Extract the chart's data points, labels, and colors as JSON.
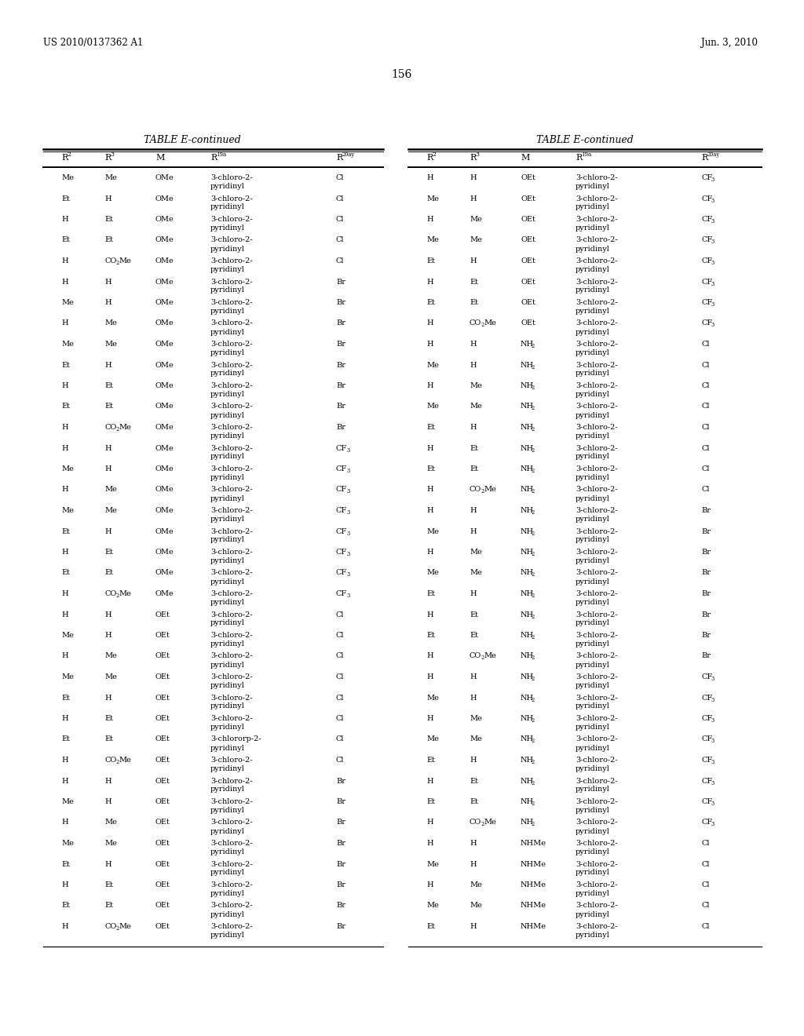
{
  "page_number": "156",
  "patent_left": "US 2010/0137362 A1",
  "patent_right": "Jun. 3, 2010",
  "table_title": "TABLE E-continued",
  "left_table": {
    "rows": [
      [
        "Me",
        "Me",
        "OMe",
        "3-chloro-2-\npyridinyl",
        "Cl"
      ],
      [
        "Et",
        "H",
        "OMe",
        "3-chloro-2-\npyridinyl",
        "Cl"
      ],
      [
        "H",
        "Et",
        "OMe",
        "3-chloro-2-\npyridinyl",
        "Cl"
      ],
      [
        "Et",
        "Et",
        "OMe",
        "3-chloro-2-\npyridinyl",
        "Cl"
      ],
      [
        "H",
        "CO2Me",
        "OMe",
        "3-chloro-2-\npyridinyl",
        "Cl"
      ],
      [
        "H",
        "H",
        "OMe",
        "3-chloro-2-\npyridinyl",
        "Br"
      ],
      [
        "Me",
        "H",
        "OMe",
        "3-chloro-2-\npyridinyl",
        "Br"
      ],
      [
        "H",
        "Me",
        "OMe",
        "3-chloro-2-\npyridinyl",
        "Br"
      ],
      [
        "Me",
        "Me",
        "OMe",
        "3-chloro-2-\npyridinyl",
        "Br"
      ],
      [
        "Et",
        "H",
        "OMe",
        "3-chloro-2-\npyridinyl",
        "Br"
      ],
      [
        "H",
        "Et",
        "OMe",
        "3-chloro-2-\npyridinyl",
        "Br"
      ],
      [
        "Et",
        "Et",
        "OMe",
        "3-chloro-2-\npyridinyl",
        "Br"
      ],
      [
        "H",
        "CO2Me",
        "OMe",
        "3-chloro-2-\npyridinyl",
        "Br"
      ],
      [
        "H",
        "H",
        "OMe",
        "3-chloro-2-\npyridinyl",
        "CF3"
      ],
      [
        "Me",
        "H",
        "OMe",
        "3-chloro-2-\npyridinyl",
        "CF3"
      ],
      [
        "H",
        "Me",
        "OMe",
        "3-chloro-2-\npyridinyl",
        "CF3"
      ],
      [
        "Me",
        "Me",
        "OMe",
        "3-chloro-2-\npyridinyl",
        "CF3"
      ],
      [
        "Et",
        "H",
        "OMe",
        "3-chloro-2-\npyridinyl",
        "CF3"
      ],
      [
        "H",
        "Et",
        "OMe",
        "3-chloro-2-\npyridinyl",
        "CF3"
      ],
      [
        "Et",
        "Et",
        "OMe",
        "3-chloro-2-\npyridinyl",
        "CF3"
      ],
      [
        "H",
        "CO2Me",
        "OMe",
        "3-chloro-2-\npyridinyl",
        "CF3"
      ],
      [
        "H",
        "H",
        "OEt",
        "3-chloro-2-\npyridinyl",
        "Cl"
      ],
      [
        "Me",
        "H",
        "OEt",
        "3-chloro-2-\npyridinyl",
        "Cl"
      ],
      [
        "H",
        "Me",
        "OEt",
        "3-chloro-2-\npyridinyl",
        "Cl"
      ],
      [
        "Me",
        "Me",
        "OEt",
        "3-chloro-2-\npyridinyl",
        "Cl"
      ],
      [
        "Et",
        "H",
        "OEt",
        "3-chloro-2-\npyridinyl",
        "Cl"
      ],
      [
        "H",
        "Et",
        "OEt",
        "3-chloro-2-\npyridinyl",
        "Cl"
      ],
      [
        "Et",
        "Et",
        "OEt",
        "3-chlororp-2-\npyridinyl",
        "Cl"
      ],
      [
        "H",
        "CO2Me",
        "OEt",
        "3-chloro-2-\npyridinyl",
        "Cl"
      ],
      [
        "H",
        "H",
        "OEt",
        "3-chloro-2-\npyridinyl",
        "Br"
      ],
      [
        "Me",
        "H",
        "OEt",
        "3-chloro-2-\npyridinyl",
        "Br"
      ],
      [
        "H",
        "Me",
        "OEt",
        "3-chloro-2-\npyridinyl",
        "Br"
      ],
      [
        "Me",
        "Me",
        "OEt",
        "3-chloro-2-\npyridinyl",
        "Br"
      ],
      [
        "Et",
        "H",
        "OEt",
        "3-chloro-2-\npyridinyl",
        "Br"
      ],
      [
        "H",
        "Et",
        "OEt",
        "3-chloro-2-\npyridinyl",
        "Br"
      ],
      [
        "Et",
        "Et",
        "OEt",
        "3-chloro-2-\npyridinyl",
        "Br"
      ],
      [
        "H",
        "CO2Me",
        "OEt",
        "3-chloro-2-\npyridinyl",
        "Br"
      ]
    ]
  },
  "right_table": {
    "rows": [
      [
        "H",
        "H",
        "OEt",
        "3-chloro-2-\npyridinyl",
        "CF3"
      ],
      [
        "Me",
        "H",
        "OEt",
        "3-chloro-2-\npyridinyl",
        "CF3"
      ],
      [
        "H",
        "Me",
        "OEt",
        "3-chloro-2-\npyridinyl",
        "CF3"
      ],
      [
        "Me",
        "Me",
        "OEt",
        "3-chloro-2-\npyridinyl",
        "CF3"
      ],
      [
        "Et",
        "H",
        "OEt",
        "3-chloro-2-\npyridinyl",
        "CF3"
      ],
      [
        "H",
        "Et",
        "OEt",
        "3-chloro-2-\npyridinyl",
        "CF3"
      ],
      [
        "Et",
        "Et",
        "OEt",
        "3-chloro-2-\npyridinyl",
        "CF3"
      ],
      [
        "H",
        "CO2Me",
        "OEt",
        "3-chloro-2-\npyridinyl",
        "CF3"
      ],
      [
        "H",
        "H",
        "NH2",
        "3-chloro-2-\npyridinyl",
        "Cl"
      ],
      [
        "Me",
        "H",
        "NH2",
        "3-chloro-2-\npyridinyl",
        "Cl"
      ],
      [
        "H",
        "Me",
        "NH2",
        "3-chloro-2-\npyridinyl",
        "Cl"
      ],
      [
        "Me",
        "Me",
        "NH2",
        "3-chloro-2-\npyridinyl",
        "Cl"
      ],
      [
        "Et",
        "H",
        "NH2",
        "3-chloro-2-\npyridinyl",
        "Cl"
      ],
      [
        "H",
        "Et",
        "NH2",
        "3-chloro-2-\npyridinyl",
        "Cl"
      ],
      [
        "Et",
        "Et",
        "NH2",
        "3-chloro-2-\npyridinyl",
        "Cl"
      ],
      [
        "H",
        "CO2Me",
        "NH2",
        "3-chloro-2-\npyridinyl",
        "Cl"
      ],
      [
        "H",
        "H",
        "NH2",
        "3-chloro-2-\npyridinyl",
        "Br"
      ],
      [
        "Me",
        "H",
        "NH2",
        "3-chloro-2-\npyridinyl",
        "Br"
      ],
      [
        "H",
        "Me",
        "NH2",
        "3-chloro-2-\npyridinyl",
        "Br"
      ],
      [
        "Me",
        "Me",
        "NH2",
        "3-chloro-2-\npyridinyl",
        "Br"
      ],
      [
        "Et",
        "H",
        "NH2",
        "3-chloro-2-\npyridinyl",
        "Br"
      ],
      [
        "H",
        "Et",
        "NH2",
        "3-chloro-2-\npyridinyl",
        "Br"
      ],
      [
        "Et",
        "Et",
        "NH2",
        "3-chloro-2-\npyridinyl",
        "Br"
      ],
      [
        "H",
        "CO2Me",
        "NH2",
        "3-chloro-2-\npyridinyl",
        "Br"
      ],
      [
        "H",
        "H",
        "NH2",
        "3-chloro-2-\npyridinyl",
        "CF3"
      ],
      [
        "Me",
        "H",
        "NH2",
        "3-chloro-2-\npyridinyl",
        "CF3"
      ],
      [
        "H",
        "Me",
        "NH2",
        "3-chloro-2-\npyridinyl",
        "CF3"
      ],
      [
        "Me",
        "Me",
        "NH2",
        "3-chloro-2-\npyridinyl",
        "CF3"
      ],
      [
        "Et",
        "H",
        "NH2",
        "3-chloro-2-\npyridinyl",
        "CF3"
      ],
      [
        "H",
        "Et",
        "NH2",
        "3-chloro-2-\npyridinyl",
        "CF3"
      ],
      [
        "Et",
        "Et",
        "NH2",
        "3-chloro-2-\npyridinyl",
        "CF3"
      ],
      [
        "H",
        "CO2Me",
        "NH2",
        "3-chloro-2-\npyridinyl",
        "CF3"
      ],
      [
        "H",
        "H",
        "NHMe",
        "3-chloro-2-\npyridinyl",
        "Cl"
      ],
      [
        "Me",
        "H",
        "NHMe",
        "3-chloro-2-\npyridinyl",
        "Cl"
      ],
      [
        "H",
        "Me",
        "NHMe",
        "3-chloro-2-\npyridinyl",
        "Cl"
      ],
      [
        "Me",
        "Me",
        "NHMe",
        "3-chloro-2-\npyridinyl",
        "Cl"
      ],
      [
        "Et",
        "H",
        "NHMe",
        "3-chloro-2-\npyridinyl",
        "Cl"
      ]
    ]
  },
  "background_color": "#ffffff",
  "text_color": "#000000",
  "font_size": 7.0,
  "header_font_size": 8.0,
  "title_fontsize": 9.0,
  "page_fontsize": 10.0,
  "patent_fontsize": 8.5
}
